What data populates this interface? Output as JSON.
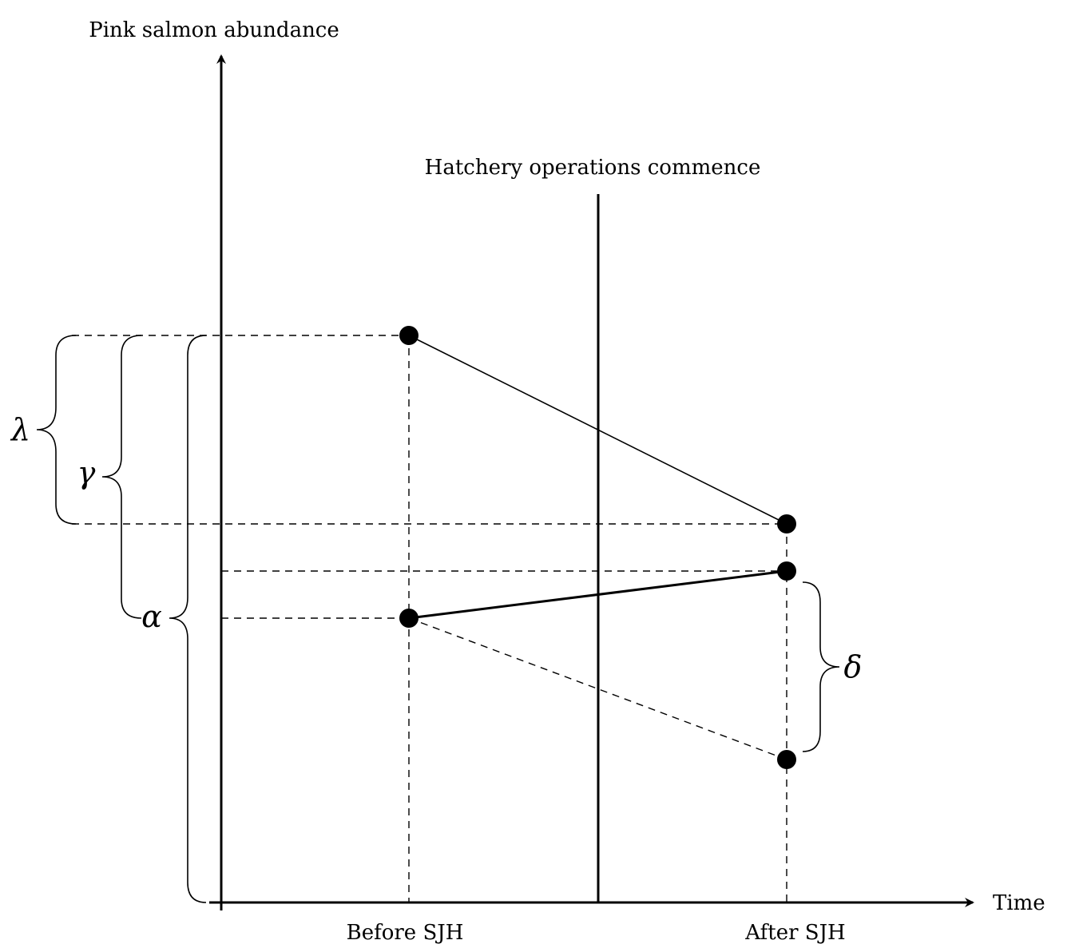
{
  "axes": {
    "y_label": "Pink salmon abundance",
    "x_label": "Time"
  },
  "event": {
    "label": "Hatchery operations commence"
  },
  "periods": {
    "before": "Before SJH",
    "after": "After SJH"
  },
  "braces": {
    "lambda": "λ",
    "gamma": "γ",
    "alpha": "α",
    "delta": "δ"
  },
  "colors": {
    "ink": "#000000",
    "background": "#ffffff"
  }
}
